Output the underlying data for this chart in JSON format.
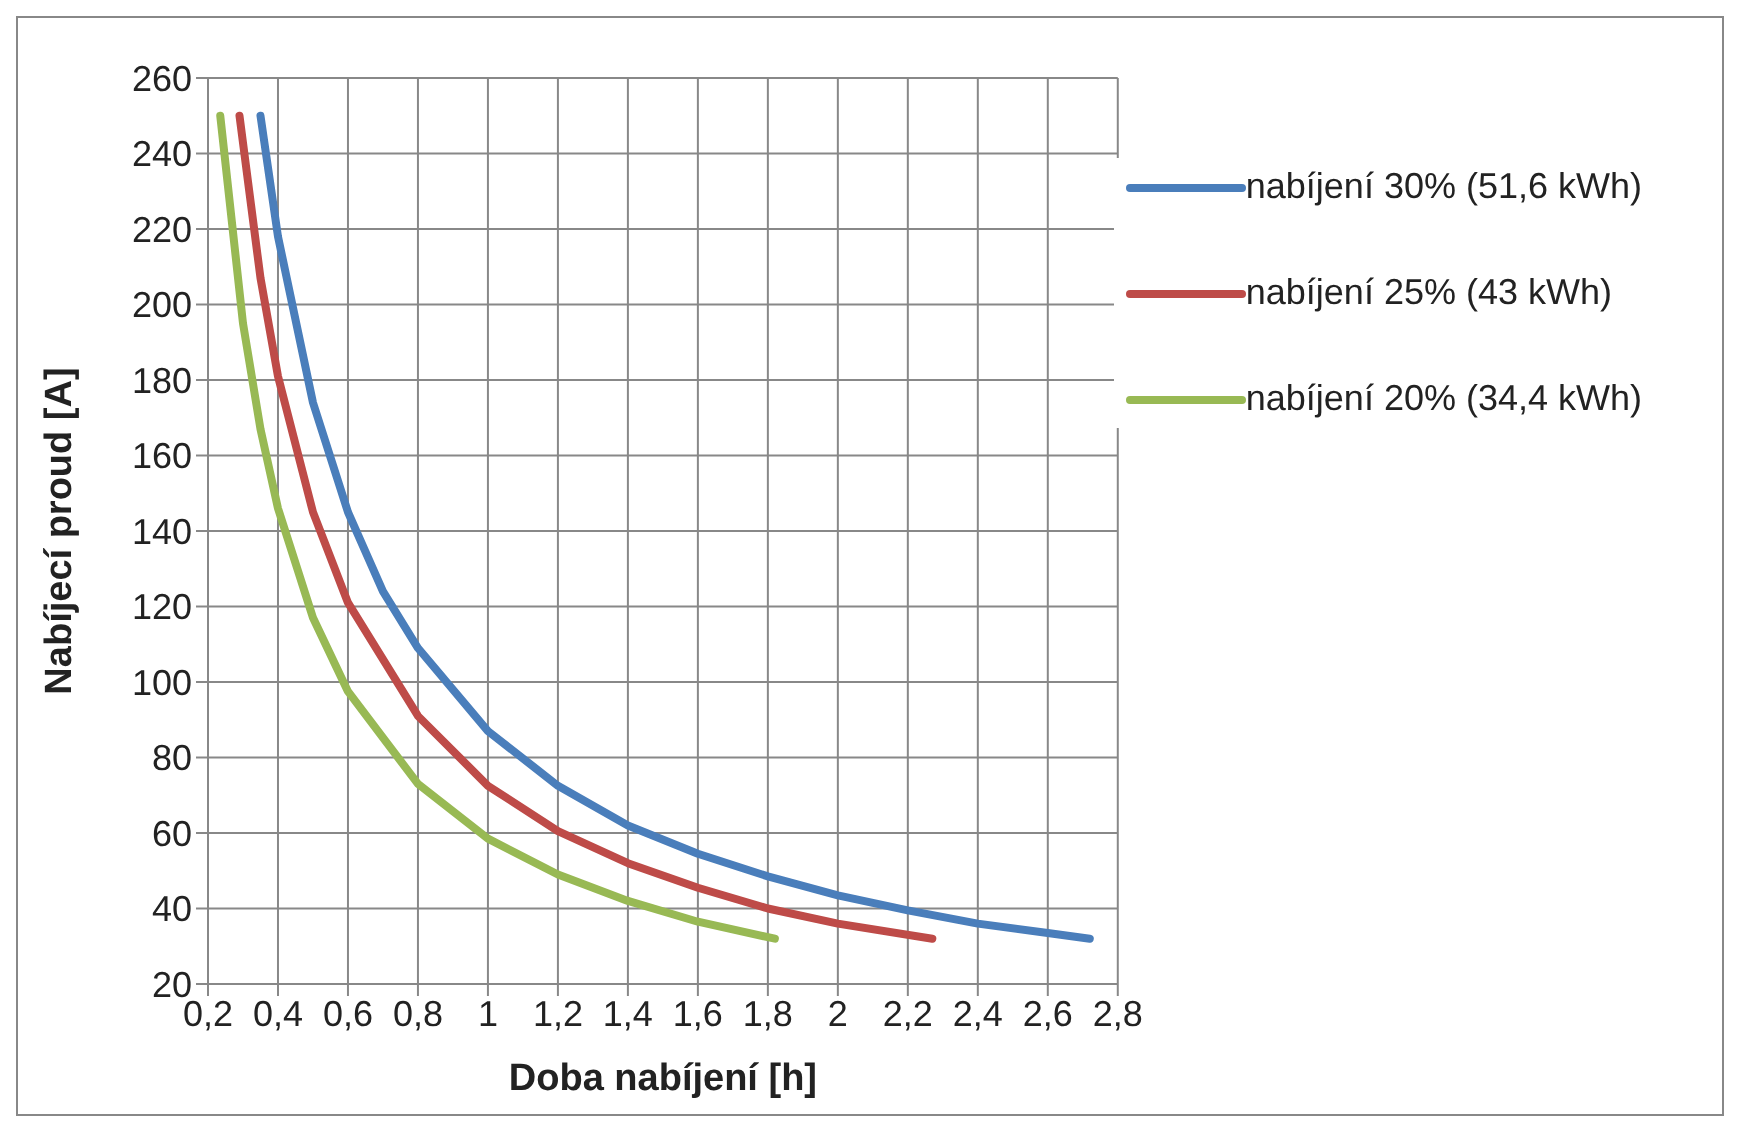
{
  "chart_data": {
    "type": "line",
    "xlabel": "Doba nabíjení [h]",
    "ylabel": "Nabíjecí proud [A]",
    "xlim": [
      0.2,
      2.8
    ],
    "xticks": [
      {
        "value": 0.2,
        "label": "0,2"
      },
      {
        "value": 0.4,
        "label": "0,4"
      },
      {
        "value": 0.6,
        "label": "0,6"
      },
      {
        "value": 0.8,
        "label": "0,8"
      },
      1,
      {
        "value": 1.2,
        "label": "1,2"
      },
      {
        "value": 1.4,
        "label": "1,4"
      },
      {
        "value": 1.6,
        "label": "1,6"
      },
      {
        "value": 1.8,
        "label": "1,8"
      },
      2,
      {
        "value": 2.2,
        "label": "2,2"
      },
      {
        "value": 2.4,
        "label": "2,4"
      },
      {
        "value": 2.6,
        "label": "2,6"
      },
      {
        "value": 2.8,
        "label": "2,8"
      }
    ],
    "ylim": [
      20,
      260
    ],
    "yticks": [
      20,
      40,
      60,
      80,
      100,
      120,
      140,
      160,
      180,
      200,
      220,
      240,
      260
    ],
    "grid": true,
    "legend": "top right",
    "marker": "none",
    "line_style": "solid",
    "series": [
      {
        "name": "nabíjení  30% (51,6 kWh)",
        "color": "#4a7ebb",
        "x": [
          0.35,
          0.4,
          0.5,
          0.6,
          0.7,
          0.8,
          1.0,
          1.2,
          1.4,
          1.6,
          1.8,
          2.0,
          2.2,
          2.4,
          2.6,
          2.72
        ],
        "values": [
          250,
          218,
          174,
          145,
          124,
          109,
          87,
          72.5,
          62,
          54.5,
          48.5,
          43.5,
          39.5,
          36,
          33.5,
          32
        ]
      },
      {
        "name": "nabíjení  25% (43 kWh)",
        "color": "#be4b48",
        "x": [
          0.29,
          0.35,
          0.4,
          0.5,
          0.6,
          0.8,
          1.0,
          1.2,
          1.4,
          1.6,
          1.8,
          2.0,
          2.27
        ],
        "values": [
          250,
          207,
          181,
          145,
          121,
          91,
          72.5,
          60.5,
          52,
          45.5,
          40,
          36,
          32
        ]
      },
      {
        "name": "nabíjení  20% (34,4 kWh)",
        "color": "#98b954",
        "x": [
          0.235,
          0.3,
          0.35,
          0.4,
          0.5,
          0.6,
          0.8,
          1.0,
          1.2,
          1.4,
          1.6,
          1.82
        ],
        "values": [
          250,
          195,
          167,
          146,
          117,
          97.5,
          73,
          58.5,
          49,
          42,
          36.5,
          32
        ]
      }
    ]
  }
}
